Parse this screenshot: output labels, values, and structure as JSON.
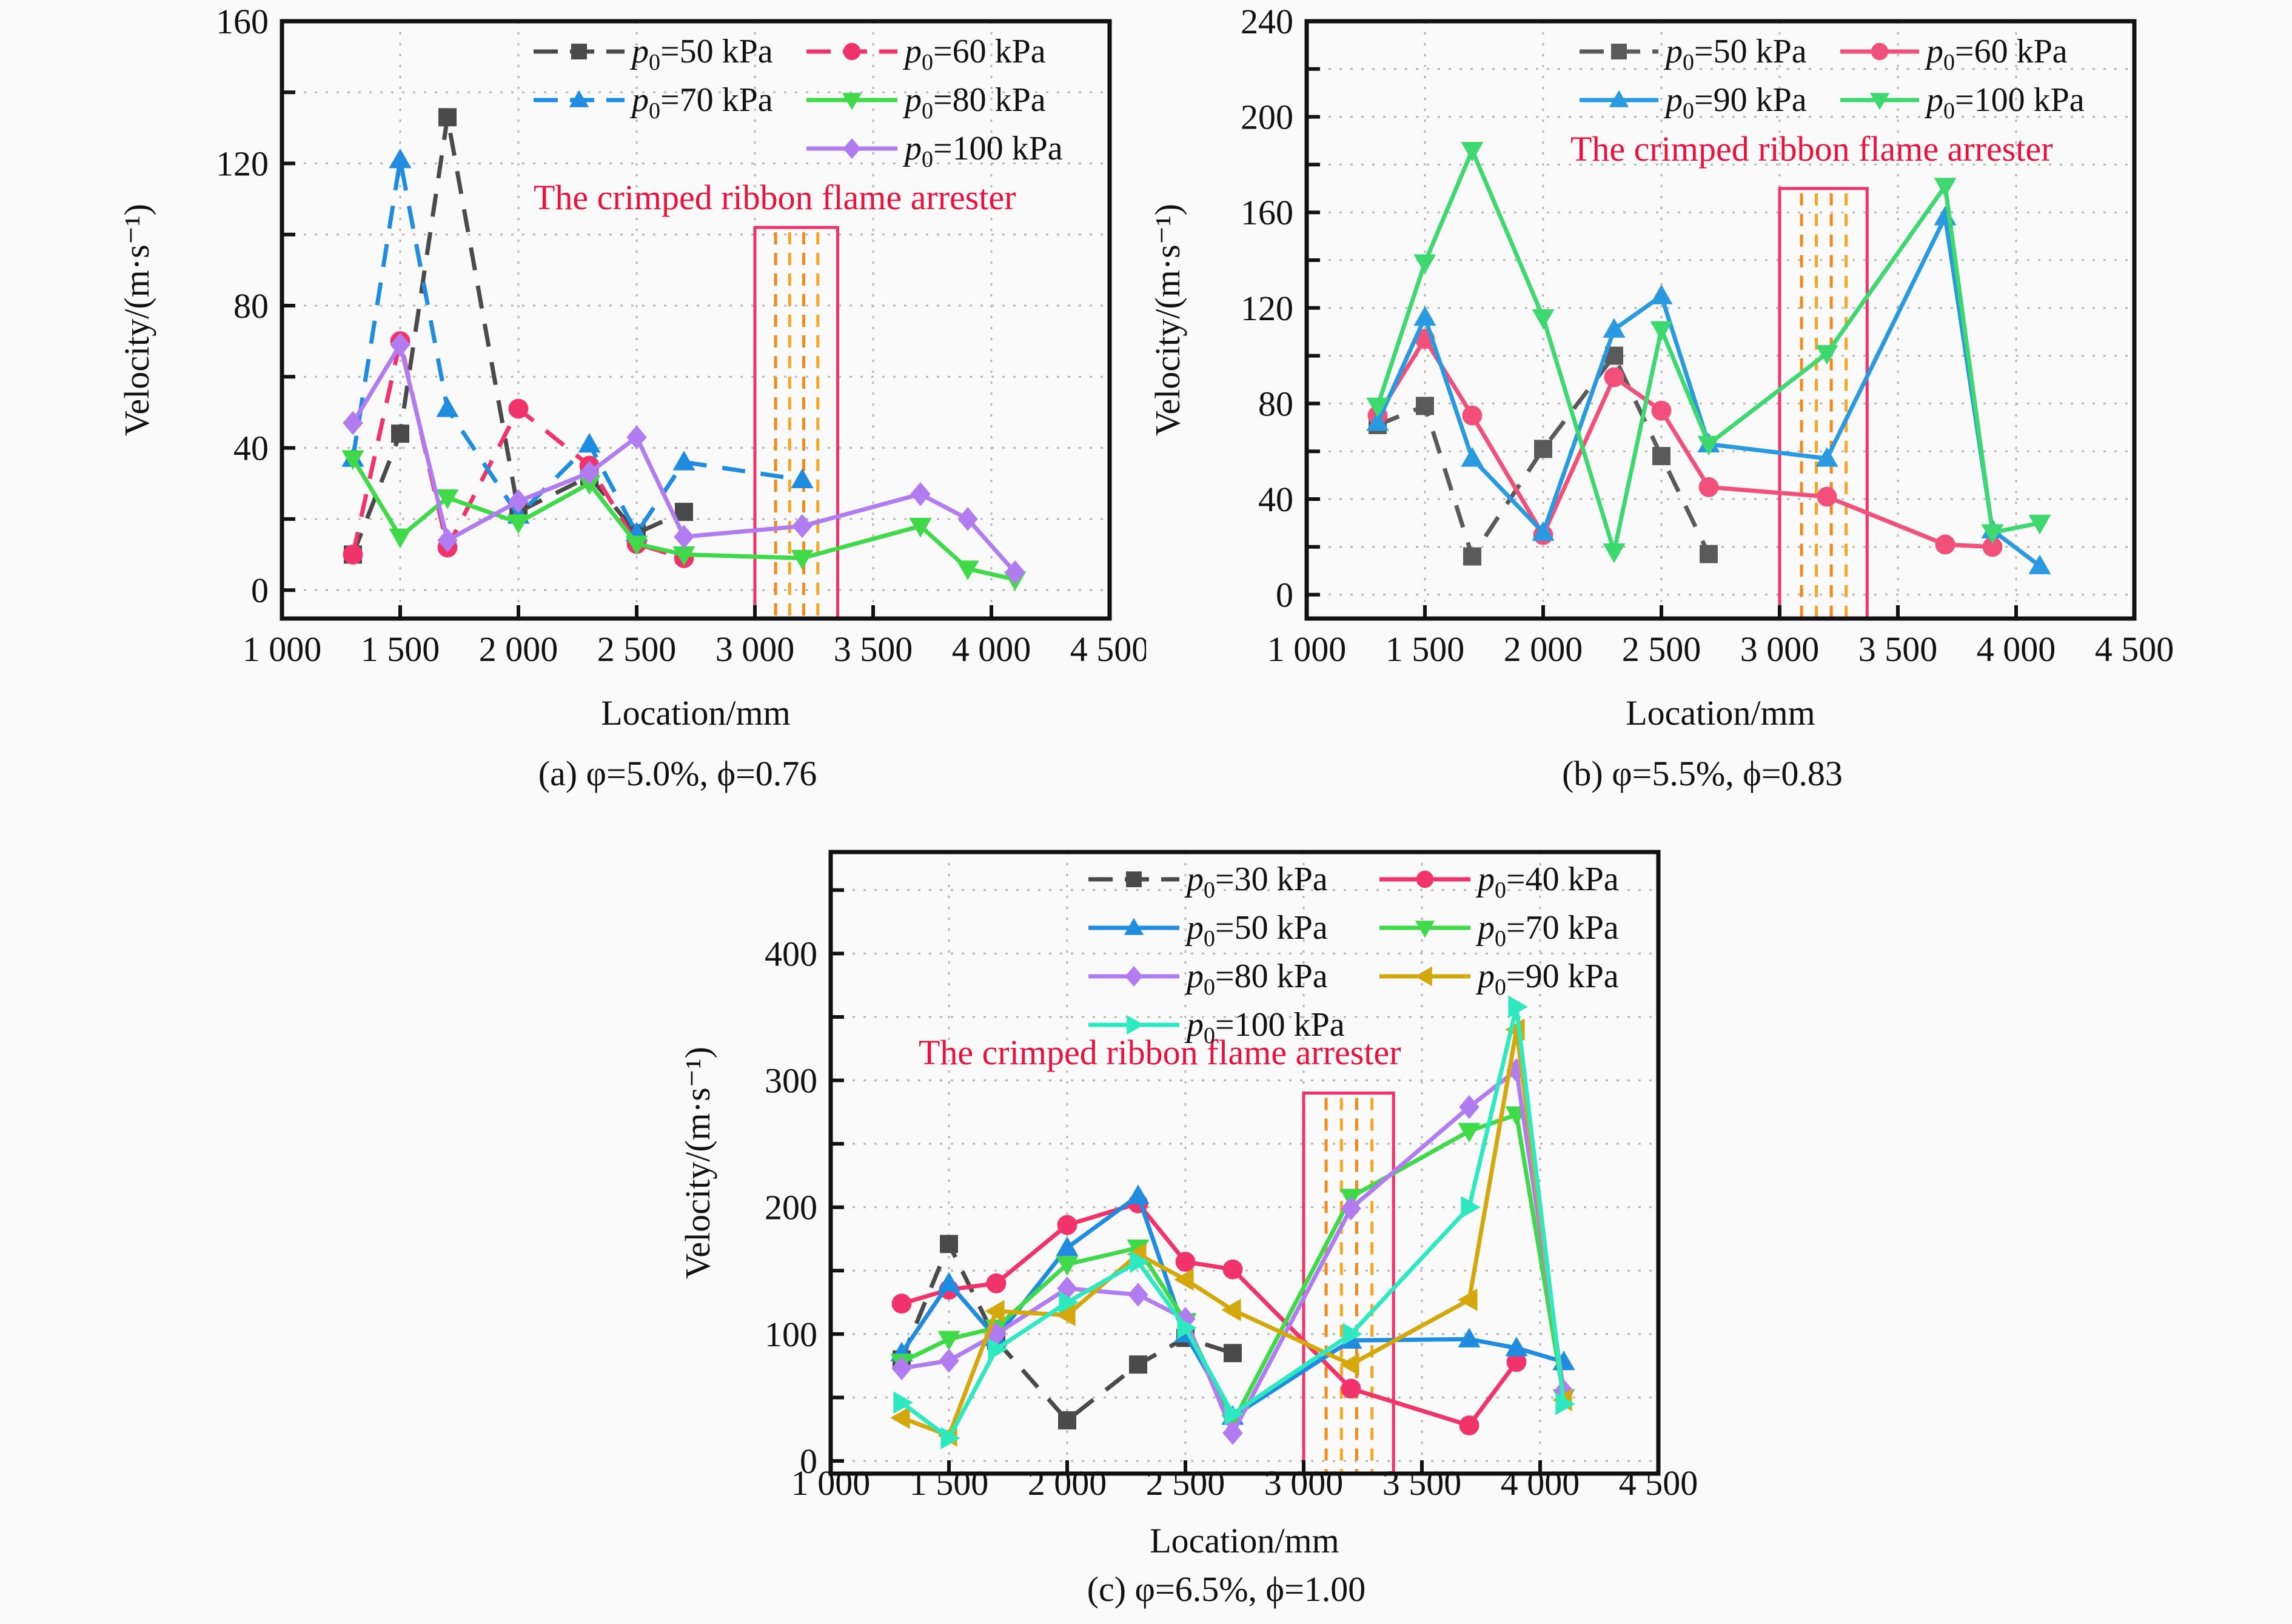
{
  "figure": {
    "arrester_label": "The crimped ribbon flame arrester"
  },
  "chart_data": [
    {
      "id": "a",
      "type": "line",
      "caption": "(a) φ=5.0%, ϕ=0.76",
      "title": "",
      "xlabel": "Location/mm",
      "ylabel": "Velocity/(m·s⁻¹)",
      "xlim": [
        1000,
        4500
      ],
      "ylim": [
        -8,
        160
      ],
      "xticks": [
        1000,
        1500,
        2000,
        2500,
        3000,
        3500,
        4000,
        4500
      ],
      "xtick_labels": [
        "1 000",
        "1 500",
        "2 000",
        "2 500",
        "3 000",
        "3 500",
        "4 000",
        "4 500"
      ],
      "yticks": [
        0,
        40,
        80,
        120,
        160
      ],
      "ytick_labels": [
        "0",
        "40",
        "80",
        "120",
        "160"
      ],
      "grid": true,
      "legend_position": "top-right",
      "arrester_range": [
        3000,
        3350
      ],
      "series": [
        {
          "name": "p0=50 kPa",
          "label_pre": "p",
          "label_sub": "0",
          "label_post": "=50 kPa",
          "color": "#4a4a4a",
          "marker": "square",
          "dash": true,
          "x": [
            1300,
            1500,
            1700,
            2000,
            2300,
            2500,
            2700
          ],
          "y": [
            10,
            44,
            133,
            22,
            32,
            16,
            22
          ]
        },
        {
          "name": "p0=60 kPa",
          "label_pre": "p",
          "label_sub": "0",
          "label_post": "=60 kPa",
          "color": "#f0336a",
          "marker": "circle",
          "dash": true,
          "x": [
            1300,
            1500,
            1700,
            2000,
            2300,
            2500,
            2700
          ],
          "y": [
            10,
            70,
            12,
            51,
            35,
            13,
            9
          ]
        },
        {
          "name": "p0=70 kPa",
          "label_pre": "p",
          "label_sub": "0",
          "label_post": "=70 kPa",
          "color": "#1f8ce0",
          "marker": "triangle-up",
          "dash": true,
          "x": [
            1300,
            1500,
            1700,
            2000,
            2300,
            2500,
            2700,
            3200
          ],
          "y": [
            37,
            121,
            51,
            21,
            41,
            16,
            36,
            31
          ]
        },
        {
          "name": "p0=80 kPa",
          "label_pre": "p",
          "label_sub": "0",
          "label_post": "=80 kPa",
          "color": "#3fd94a",
          "marker": "triangle-down",
          "dash": false,
          "x": [
            1300,
            1500,
            1700,
            2000,
            2300,
            2500,
            2700,
            3200,
            3700,
            3900,
            4100
          ],
          "y": [
            37,
            15,
            26,
            19,
            30,
            13,
            10,
            9,
            18,
            6,
            3
          ]
        },
        {
          "name": "p0=100 kPa",
          "label_pre": "p",
          "label_sub": "0",
          "label_post": "=100 kPa",
          "color": "#b07cf0",
          "marker": "diamond",
          "dash": false,
          "x": [
            1300,
            1500,
            1700,
            2000,
            2300,
            2500,
            2700,
            3200,
            3700,
            3900,
            4100
          ],
          "y": [
            47,
            69,
            14,
            25,
            33,
            43,
            15,
            18,
            27,
            20,
            5
          ]
        }
      ]
    },
    {
      "id": "b",
      "type": "line",
      "caption": "(b) φ=5.5%, ϕ=0.83",
      "title": "",
      "xlabel": "Location/mm",
      "ylabel": "Velocity/(m·s⁻¹)",
      "xlim": [
        1000,
        4500
      ],
      "ylim": [
        -10,
        240
      ],
      "xticks": [
        1000,
        1500,
        2000,
        2500,
        3000,
        3500,
        4000,
        4500
      ],
      "xtick_labels": [
        "1 000",
        "1 500",
        "2 000",
        "2 500",
        "3 000",
        "3 500",
        "4 000",
        "4 500"
      ],
      "yticks": [
        0,
        40,
        80,
        120,
        160,
        200,
        240
      ],
      "ytick_labels": [
        "0",
        "40",
        "80",
        "120",
        "160",
        "200",
        "240"
      ],
      "grid": true,
      "legend_position": "top-right",
      "arrester_range": [
        3000,
        3370
      ],
      "series": [
        {
          "name": "p0=50 kPa",
          "label_pre": "p",
          "label_sub": "0",
          "label_post": "=50 kPa",
          "color": "#5a5a5a",
          "marker": "square",
          "dash": true,
          "x": [
            1300,
            1500,
            1700,
            2000,
            2300,
            2500,
            2700
          ],
          "y": [
            71,
            79,
            16,
            61,
            100,
            58,
            17
          ]
        },
        {
          "name": "p0=60 kPa",
          "label_pre": "p",
          "label_sub": "0",
          "label_post": "=60 kPa",
          "color": "#f0507a",
          "marker": "circle",
          "dash": false,
          "x": [
            1300,
            1500,
            1700,
            2000,
            2300,
            2500,
            2700,
            3200,
            3700,
            3900
          ],
          "y": [
            75,
            107,
            75,
            25,
            91,
            77,
            45,
            41,
            21,
            20
          ]
        },
        {
          "name": "p0=90 kPa",
          "label_pre": "p",
          "label_sub": "0",
          "label_post": "=90 kPa",
          "color": "#2a9ae0",
          "marker": "triangle-up",
          "dash": false,
          "x": [
            1300,
            1500,
            1700,
            2000,
            2300,
            2500,
            2700,
            3200,
            3700,
            3900,
            4100
          ],
          "y": [
            72,
            116,
            57,
            26,
            111,
            125,
            63,
            57,
            158,
            27,
            12
          ]
        },
        {
          "name": "p0=100 kPa",
          "label_pre": "p",
          "label_sub": "0",
          "label_post": "=100 kPa",
          "color": "#3ed870",
          "marker": "triangle-down",
          "dash": false,
          "x": [
            1300,
            1500,
            1700,
            2000,
            2300,
            2500,
            2700,
            3200,
            3700,
            3900,
            4100
          ],
          "y": [
            79,
            139,
            186,
            116,
            18,
            111,
            63,
            101,
            171,
            26,
            30
          ]
        }
      ]
    },
    {
      "id": "c",
      "type": "line",
      "caption": "(c) φ=6.5%, ϕ=1.00",
      "title": "",
      "xlabel": "Location/mm",
      "ylabel": "Velocity/(m·s⁻¹)",
      "xlim": [
        1000,
        4500
      ],
      "ylim": [
        -10,
        480
      ],
      "xticks": [
        1000,
        1500,
        2000,
        2500,
        3000,
        3500,
        4000,
        4500
      ],
      "xtick_labels": [
        "1 000",
        "1 500",
        "2 000",
        "2 500",
        "3 000",
        "3 500",
        "4 000",
        "4 500"
      ],
      "yticks": [
        0,
        100,
        200,
        300,
        400
      ],
      "ytick_labels": [
        "0",
        "100",
        "200",
        "300",
        "400"
      ],
      "grid": true,
      "legend_position": "top-right",
      "arrester_range": [
        3000,
        3380
      ],
      "series": [
        {
          "name": "p0=30 kPa",
          "label_pre": "p",
          "label_sub": "0",
          "label_post": "=30 kPa",
          "color": "#4a4a4a",
          "marker": "square",
          "dash": true,
          "x": [
            1300,
            1500,
            1700,
            2000,
            2300,
            2500,
            2700
          ],
          "y": [
            80,
            171,
            95,
            32,
            76,
            97,
            85
          ]
        },
        {
          "name": "p0=40 kPa",
          "label_pre": "p",
          "label_sub": "0",
          "label_post": "=40 kPa",
          "color": "#f0336a",
          "marker": "circle",
          "dash": false,
          "x": [
            1300,
            1500,
            1700,
            2000,
            2300,
            2500,
            2700,
            3200,
            3700,
            3900
          ],
          "y": [
            124,
            135,
            140,
            186,
            203,
            157,
            151,
            57,
            28,
            78
          ]
        },
        {
          "name": "p0=50 kPa",
          "label_pre": "p",
          "label_sub": "0",
          "label_post": "=50 kPa",
          "color": "#1f8ce0",
          "marker": "triangle-up",
          "dash": false,
          "x": [
            1300,
            1500,
            1700,
            2000,
            2300,
            2500,
            2700,
            3200,
            3700,
            3900,
            4100
          ],
          "y": [
            85,
            140,
            97,
            168,
            209,
            100,
            35,
            95,
            96,
            89,
            78
          ]
        },
        {
          "name": "p0=70 kPa",
          "label_pre": "p",
          "label_sub": "0",
          "label_post": "=70 kPa",
          "color": "#3fd94a",
          "marker": "triangle-down",
          "dash": false,
          "x": [
            1300,
            1500,
            1700,
            2000,
            2300,
            2500,
            2700,
            3200,
            3700,
            3900,
            4100
          ],
          "y": [
            78,
            96,
            105,
            155,
            168,
            110,
            30,
            208,
            260,
            273,
            50
          ]
        },
        {
          "name": "p0=80 kPa",
          "label_pre": "p",
          "label_sub": "0",
          "label_post": "=80 kPa",
          "color": "#b07cf0",
          "marker": "diamond",
          "dash": false,
          "x": [
            1300,
            1500,
            1700,
            2000,
            2300,
            2500,
            2700,
            3200,
            3700,
            3900,
            4100
          ],
          "y": [
            73,
            79,
            100,
            136,
            131,
            112,
            22,
            199,
            279,
            308,
            55
          ]
        },
        {
          "name": "p0=90 kPa",
          "label_pre": "p",
          "label_sub": "0",
          "label_post": "=90 kPa",
          "color": "#d4a80c",
          "marker": "triangle-left",
          "dash": false,
          "x": [
            1300,
            1500,
            1700,
            2000,
            2300,
            2500,
            2700,
            3200,
            3700,
            3900,
            4100
          ],
          "y": [
            34,
            20,
            118,
            115,
            163,
            143,
            119,
            76,
            127,
            340,
            48
          ]
        },
        {
          "name": "p0=100 kPa",
          "label_pre": "p",
          "label_sub": "0",
          "label_post": "=100 kPa",
          "color": "#2ee8c0",
          "marker": "triangle-right",
          "dash": false,
          "x": [
            1300,
            1500,
            1700,
            2000,
            2300,
            2500,
            2700,
            3200,
            3700,
            3900,
            4100
          ],
          "y": [
            46,
            18,
            88,
            125,
            157,
            105,
            37,
            100,
            200,
            358,
            45
          ]
        }
      ]
    }
  ]
}
